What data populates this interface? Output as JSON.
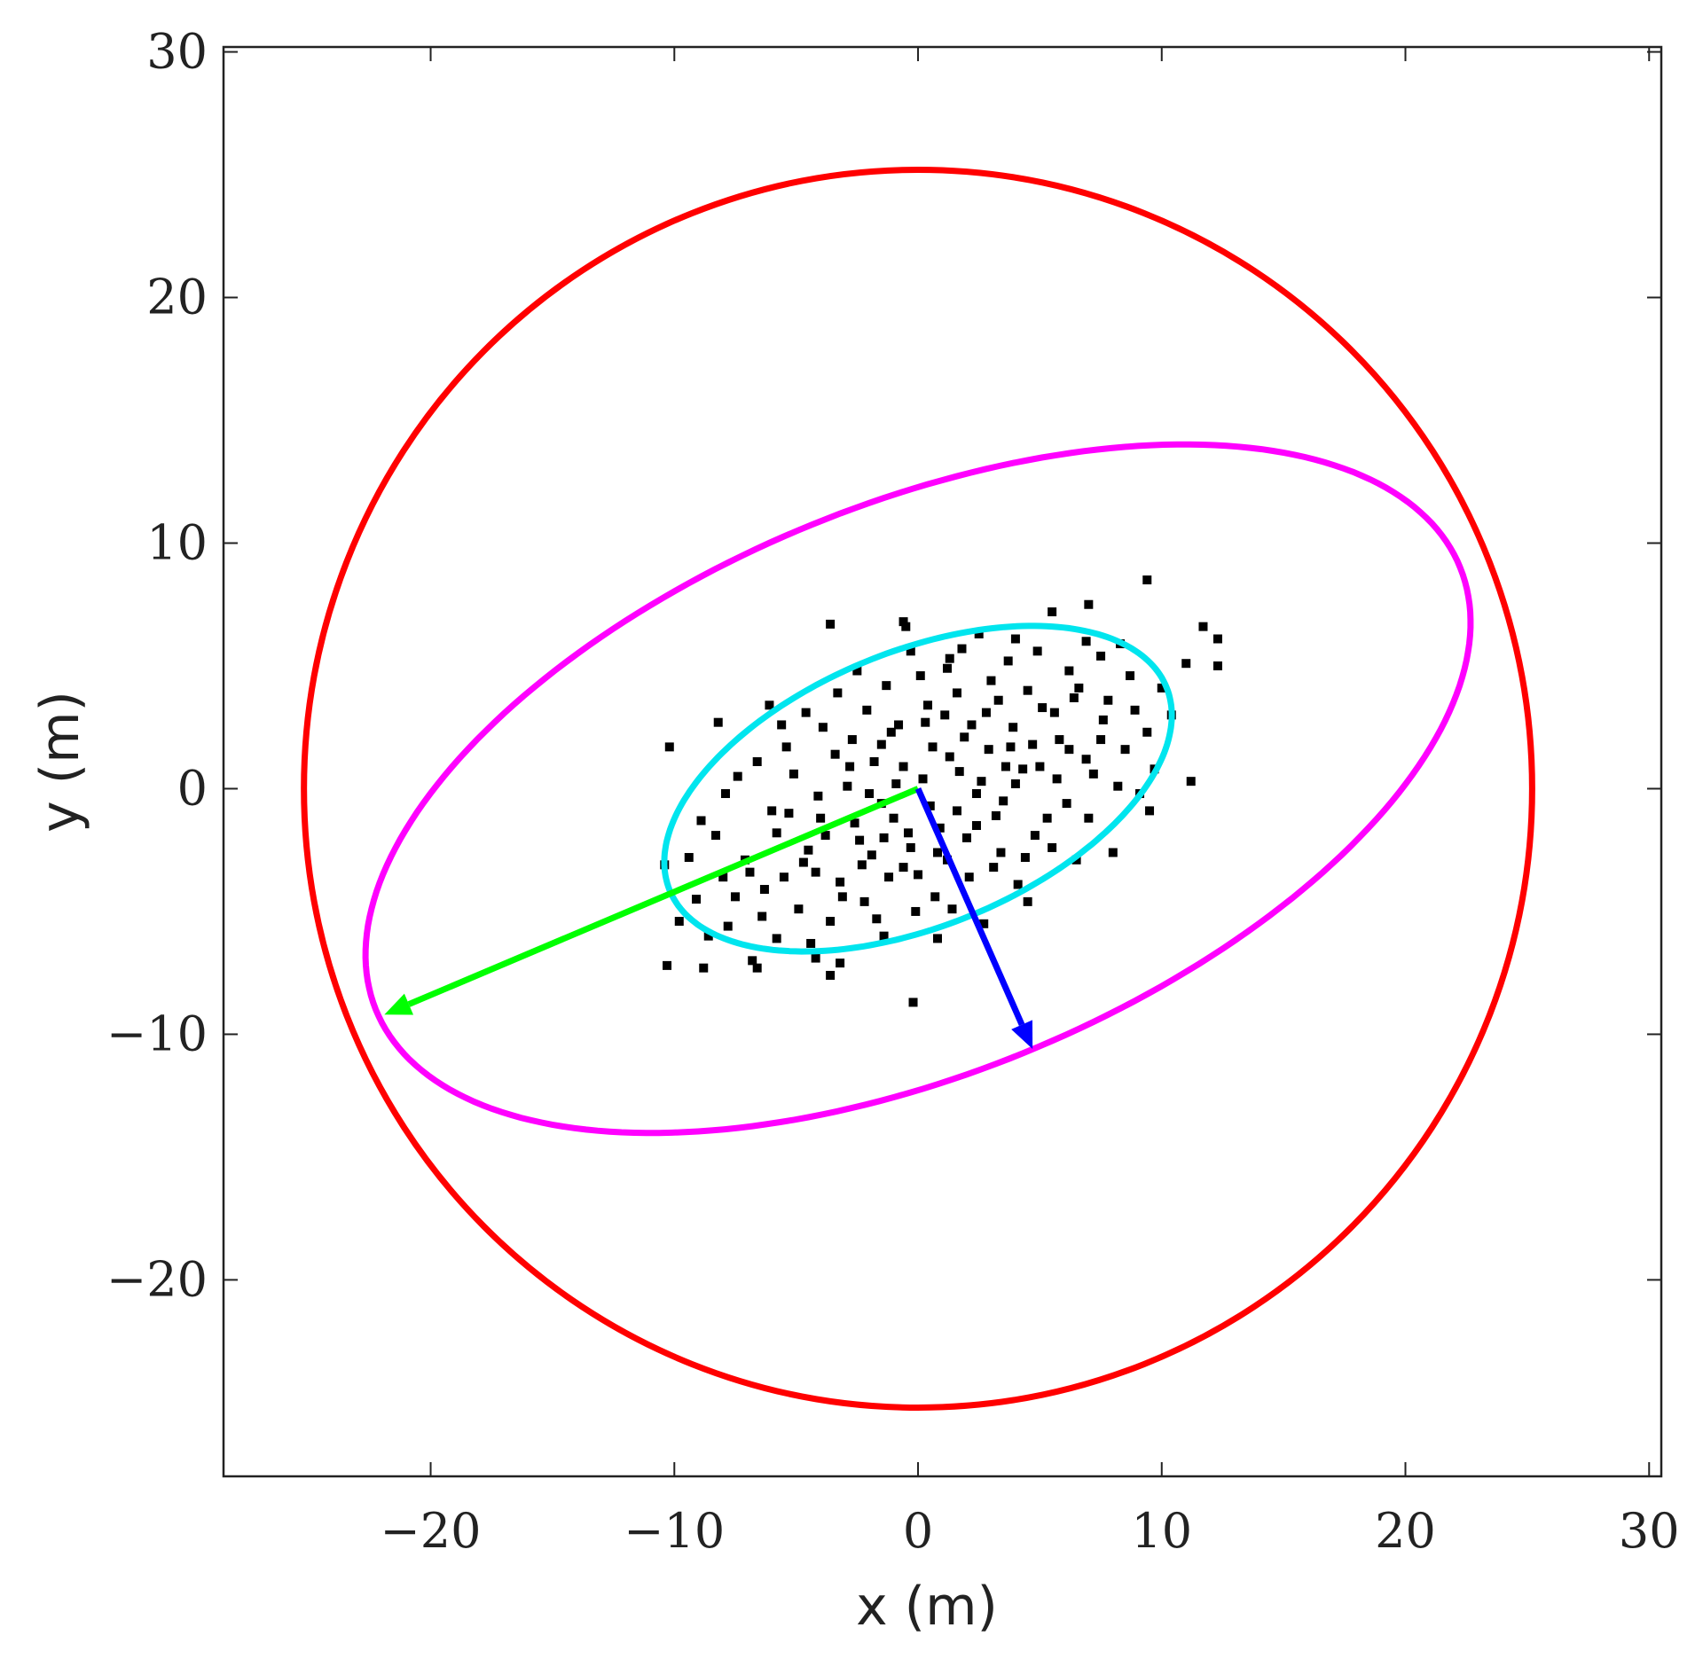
{
  "chart_data": {
    "type": "scatter",
    "title": "",
    "xlabel": "x (m)",
    "ylabel": "y (m)",
    "xlim": [
      -28.5,
      30.5
    ],
    "ylim": [
      -28,
      30.2
    ],
    "x_ticks": [
      -20,
      -10,
      0,
      10,
      20,
      30
    ],
    "x_tick_labels": [
      "−20",
      "−10",
      "0",
      "10",
      "20",
      "30"
    ],
    "y_ticks": [
      -20,
      -10,
      0,
      10,
      20,
      30
    ],
    "y_tick_labels": [
      "−20",
      "−10",
      "0",
      "10",
      "20",
      "30"
    ],
    "grid": false,
    "legend": null,
    "colors": {
      "points": "#000000",
      "circle": "#ff0000",
      "outer_ellipse": "#ff00ff",
      "inner_ellipse": "#00e5ee",
      "major_axis_arrow": "#00ff00",
      "minor_axis_arrow": "#0000ff",
      "frame": "#222222"
    },
    "circle": {
      "center": [
        0,
        0
      ],
      "radius": 25.2
    },
    "ellipses": [
      {
        "name": "outer",
        "center": [
          0,
          0
        ],
        "semi_major": 24.0,
        "semi_minor": 11.6,
        "angle_deg": 22
      },
      {
        "name": "inner",
        "center": [
          0,
          0
        ],
        "semi_major": 11.0,
        "semi_minor": 5.6,
        "angle_deg": 22
      }
    ],
    "arrows": [
      {
        "name": "major-axis",
        "from": [
          0,
          0
        ],
        "to": [
          -21.9,
          -9.2
        ]
      },
      {
        "name": "minor-axis",
        "from": [
          0,
          0
        ],
        "to": [
          4.7,
          -10.6
        ]
      }
    ],
    "points": [
      [
        -10.3,
        -7.2
      ],
      [
        -8.8,
        -7.3
      ],
      [
        -10.4,
        -3.1
      ],
      [
        -10.2,
        1.7
      ],
      [
        -8.2,
        2.7
      ],
      [
        -6.8,
        -7.0
      ],
      [
        -3.6,
        -7.6
      ],
      [
        -3.2,
        -7.1
      ],
      [
        -0.2,
        -8.7
      ],
      [
        9.4,
        8.5
      ],
      [
        7.0,
        7.5
      ],
      [
        5.5,
        7.2
      ],
      [
        4.0,
        6.1
      ],
      [
        2.5,
        6.3
      ],
      [
        -0.5,
        6.6
      ],
      [
        -0.6,
        6.8
      ],
      [
        -3.6,
        6.7
      ],
      [
        11.7,
        6.6
      ],
      [
        12.3,
        6.1
      ],
      [
        12.3,
        5.0
      ],
      [
        11.0,
        5.1
      ],
      [
        11.2,
        0.3
      ],
      [
        9.7,
        0.8
      ],
      [
        9.5,
        -0.9
      ],
      [
        -6.1,
        3.4
      ],
      [
        -3.9,
        2.5
      ],
      [
        -2.1,
        3.2
      ],
      [
        1.3,
        5.3
      ],
      [
        3.0,
        4.4
      ],
      [
        6.2,
        4.8
      ],
      [
        7.5,
        5.4
      ],
      [
        8.7,
        4.6
      ],
      [
        10.0,
        4.1
      ],
      [
        -7.5,
        -4.4
      ],
      [
        -5.8,
        -6.1
      ],
      [
        -4.4,
        -6.3
      ],
      [
        -1.4,
        -6.0
      ],
      [
        0.8,
        -6.1
      ],
      [
        2.7,
        -5.5
      ],
      [
        4.1,
        -3.9
      ],
      [
        -9.4,
        -2.8
      ],
      [
        -8.9,
        -1.3
      ],
      [
        -7.9,
        -0.2
      ],
      [
        -6.6,
        1.1
      ],
      [
        -5.4,
        1.7
      ],
      [
        -4.1,
        -0.3
      ],
      [
        -2.8,
        0.9
      ],
      [
        -1.5,
        1.8
      ],
      [
        -0.8,
        2.6
      ],
      [
        0.4,
        3.4
      ],
      [
        1.6,
        3.9
      ],
      [
        2.8,
        3.1
      ],
      [
        3.9,
        2.5
      ],
      [
        5.1,
        3.3
      ],
      [
        6.4,
        3.7
      ],
      [
        7.6,
        2.8
      ],
      [
        8.5,
        1.6
      ],
      [
        7.2,
        0.6
      ],
      [
        6.1,
        -0.6
      ],
      [
        4.8,
        -1.9
      ],
      [
        3.4,
        -2.6
      ],
      [
        2.1,
        -3.6
      ],
      [
        0.7,
        -4.4
      ],
      [
        -0.6,
        -3.2
      ],
      [
        -1.9,
        -2.7
      ],
      [
        -3.2,
        -3.8
      ],
      [
        -4.5,
        -2.5
      ],
      [
        -5.8,
        -1.8
      ],
      [
        -7.1,
        -2.9
      ],
      [
        -6.3,
        -4.1
      ],
      [
        -4.9,
        -4.9
      ],
      [
        -3.6,
        -5.4
      ],
      [
        -2.2,
        -4.6
      ],
      [
        -1.0,
        -1.2
      ],
      [
        0.2,
        0.4
      ],
      [
        1.3,
        1.3
      ],
      [
        2.4,
        -0.2
      ],
      [
        3.6,
        0.9
      ],
      [
        4.7,
        1.8
      ],
      [
        5.8,
        2.0
      ],
      [
        6.9,
        1.2
      ],
      [
        1.9,
        2.1
      ],
      [
        0.9,
        -1.6
      ],
      [
        -0.3,
        -2.4
      ],
      [
        -1.5,
        -0.6
      ],
      [
        -2.6,
        -1.4
      ],
      [
        -3.8,
        -1.9
      ],
      [
        -2.9,
        0.1
      ],
      [
        -1.8,
        1.1
      ],
      [
        -0.6,
        0.9
      ],
      [
        0.6,
        1.7
      ],
      [
        1.7,
        0.7
      ],
      [
        2.9,
        1.6
      ],
      [
        4.0,
        0.2
      ],
      [
        3.2,
        -1.1
      ],
      [
        2.0,
        -2.0
      ],
      [
        0.8,
        -2.6
      ],
      [
        -0.4,
        -1.8
      ],
      [
        -1.2,
        -3.6
      ],
      [
        -2.4,
        -2.1
      ],
      [
        -4.2,
        -3.4
      ],
      [
        -5.1,
        0.6
      ],
      [
        -6.0,
        -0.9
      ],
      [
        -7.4,
        0.5
      ],
      [
        -8.3,
        -1.9
      ],
      [
        -9.1,
        -4.5
      ],
      [
        -7.8,
        -5.6
      ],
      [
        -6.4,
        -5.2
      ],
      [
        -2.7,
        2.0
      ],
      [
        -1.1,
        2.3
      ],
      [
        0.3,
        2.7
      ],
      [
        1.1,
        3.0
      ],
      [
        2.2,
        2.6
      ],
      [
        3.3,
        3.6
      ],
      [
        4.5,
        4.0
      ],
      [
        5.6,
        3.1
      ],
      [
        6.6,
        4.1
      ],
      [
        7.8,
        3.6
      ],
      [
        8.9,
        3.2
      ],
      [
        9.4,
        2.3
      ],
      [
        8.2,
        0.1
      ],
      [
        7.0,
        -1.2
      ],
      [
        5.5,
        -2.4
      ],
      [
        4.4,
        -2.8
      ],
      [
        1.4,
        -4.9
      ],
      [
        -0.1,
        -5.0
      ],
      [
        -1.7,
        -5.3
      ],
      [
        -3.1,
        -4.4
      ],
      [
        -4.7,
        -3.0
      ],
      [
        -5.5,
        -3.6
      ],
      [
        -3.4,
        1.4
      ],
      [
        -2.0,
        -0.2
      ],
      [
        -0.9,
        0.2
      ],
      [
        0.5,
        -0.7
      ],
      [
        1.6,
        -0.9
      ],
      [
        2.6,
        0.3
      ],
      [
        3.8,
        1.7
      ],
      [
        5.0,
        0.9
      ],
      [
        6.2,
        1.6
      ],
      [
        5.3,
        -1.2
      ],
      [
        3.1,
        -3.2
      ],
      [
        -5.6,
        2.6
      ],
      [
        -4.6,
        3.1
      ],
      [
        -3.3,
        3.9
      ],
      [
        -1.3,
        4.2
      ],
      [
        0.1,
        4.6
      ],
      [
        1.2,
        4.9
      ],
      [
        3.7,
        5.2
      ],
      [
        4.9,
        5.6
      ],
      [
        6.9,
        6.0
      ],
      [
        8.3,
        5.9
      ],
      [
        10.4,
        3.0
      ],
      [
        9.1,
        -0.2
      ],
      [
        8.0,
        -2.6
      ],
      [
        6.5,
        -2.9
      ],
      [
        -9.8,
        -5.4
      ],
      [
        -8.6,
        -6.0
      ],
      [
        -8.0,
        -3.6
      ],
      [
        -6.9,
        -3.4
      ],
      [
        -5.3,
        -1.0
      ],
      [
        -4.0,
        -1.2
      ],
      [
        -2.3,
        -3.1
      ],
      [
        -1.4,
        -2.0
      ],
      [
        0.0,
        -3.5
      ],
      [
        1.2,
        -2.9
      ],
      [
        2.4,
        -1.5
      ],
      [
        3.5,
        -0.5
      ],
      [
        4.3,
        0.8
      ],
      [
        5.7,
        0.4
      ],
      [
        7.5,
        2.0
      ],
      [
        -2.5,
        4.8
      ],
      [
        -0.3,
        5.6
      ],
      [
        1.8,
        5.7
      ],
      [
        -6.6,
        -7.3
      ],
      [
        -4.2,
        -6.9
      ],
      [
        4.5,
        -4.6
      ]
    ]
  }
}
